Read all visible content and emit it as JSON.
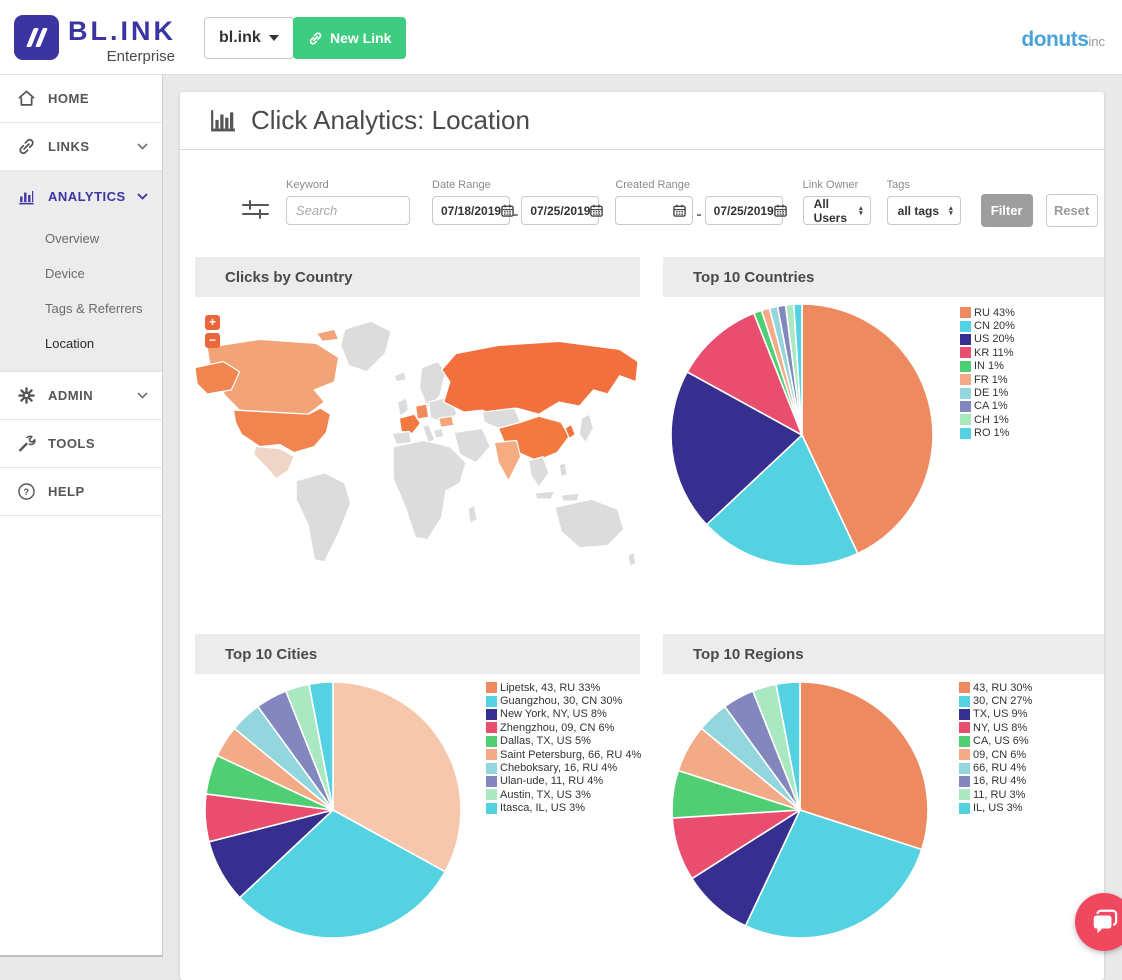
{
  "header": {
    "brand": "BL.INK",
    "brand_sub": "Enterprise",
    "domain_selector": "bl.ink",
    "new_link": "New Link",
    "org_logo_bold": "donuts",
    "org_logo_light": "inc"
  },
  "sidebar": {
    "items": [
      {
        "label": "HOME"
      },
      {
        "label": "LINKS"
      },
      {
        "label": "ANALYTICS"
      },
      {
        "label": "ADMIN"
      },
      {
        "label": "TOOLS"
      },
      {
        "label": "HELP"
      }
    ],
    "analytics_children": [
      {
        "label": "Overview"
      },
      {
        "label": "Device"
      },
      {
        "label": "Tags & Referrers"
      },
      {
        "label": "Location"
      }
    ]
  },
  "page_title": "Click Analytics: Location",
  "filters": {
    "keyword_label": "Keyword",
    "keyword_placeholder": "Search",
    "date_range_label": "Date Range",
    "date_from": "07/18/2019",
    "date_to": "07/25/2019",
    "created_range_label": "Created Range",
    "created_from": "",
    "created_to": "07/25/2019",
    "range_separator": "-",
    "link_owner_label": "Link Owner",
    "link_owner_value": "All Users",
    "tags_label": "Tags",
    "tags_value": "all tags",
    "filter_button": "Filter",
    "reset_button": "Reset"
  },
  "panels": {
    "map_title": "Clicks by Country",
    "countries_title": "Top 10 Countries",
    "cities_title": "Top 10 Cities",
    "regions_title": "Top 10 Regions"
  },
  "chart_data": [
    {
      "id": "countries",
      "type": "pie",
      "title": "Top 10 Countries",
      "labels": [
        "RU",
        "CN",
        "US",
        "KR",
        "IN",
        "FR",
        "DE",
        "CA",
        "CH",
        "RO"
      ],
      "values": [
        43,
        20,
        20,
        11,
        1,
        1,
        1,
        1,
        1,
        1
      ],
      "colors": [
        "#EE8A60",
        "#54D2E2",
        "#372F8F",
        "#EA4E6E",
        "#4FCE73",
        "#F2AA87",
        "#93D6DE",
        "#8487BE",
        "#A9E8C1",
        "#54D2E2"
      ],
      "legend_position": "right"
    },
    {
      "id": "cities",
      "type": "pie",
      "title": "Top 10 Cities",
      "labels": [
        "Lipetsk, 43, RU",
        "Guangzhou, 30, CN",
        "New York, NY, US",
        "Zhengzhou, 09, CN",
        "Dallas, TX, US",
        "Saint Petersburg, 66, RU",
        "Cheboksary, 16, RU",
        "Ulan-ude, 11, RU",
        "Austin, TX, US",
        "Itasca, IL, US"
      ],
      "values": [
        33,
        30,
        8,
        6,
        5,
        4,
        4,
        4,
        3,
        3
      ],
      "colors": [
        "#F7C7AC",
        "#54D2E2",
        "#372F8F",
        "#EA4E6E",
        "#4FCE73",
        "#F2AA87",
        "#93D6DE",
        "#8487BE",
        "#A9E8C1",
        "#54D2E2"
      ],
      "legend_colors": [
        "#EE8A60",
        "#54D2E2",
        "#372F8F",
        "#EA4E6E",
        "#4FCE73",
        "#F2AA87",
        "#93D6DE",
        "#8487BE",
        "#A9E8C1",
        "#54D2E2"
      ],
      "legend_position": "right"
    },
    {
      "id": "regions",
      "type": "pie",
      "title": "Top 10 Regions",
      "labels": [
        "43, RU",
        "30, CN",
        "TX, US",
        "NY, US",
        "CA, US",
        "09, CN",
        "66, RU",
        "16, RU",
        "11, RU",
        "IL, US"
      ],
      "values": [
        30,
        27,
        9,
        8,
        6,
        6,
        4,
        4,
        3,
        3
      ],
      "colors": [
        "#EE8A60",
        "#54D2E2",
        "#372F8F",
        "#EA4E6E",
        "#4FCE73",
        "#F2AA87",
        "#93D6DE",
        "#8487BE",
        "#A9E8C1",
        "#54D2E2"
      ],
      "legend_position": "right"
    },
    {
      "id": "worldmap",
      "type": "map",
      "title": "Clicks by Country",
      "base_color": "#DCDCDC",
      "highlights": {
        "RU": "#F2703E",
        "US": "#F0854F",
        "AK": "#F0854F",
        "CA": "#F2A478",
        "MX": "#EFD5C5",
        "CN": "#F2793F",
        "IN": "#F5AC80",
        "FR": "#F2793F",
        "DE": "#F08A5A",
        "RO": "#F3A577",
        "KR": "#F2703E"
      }
    }
  ]
}
